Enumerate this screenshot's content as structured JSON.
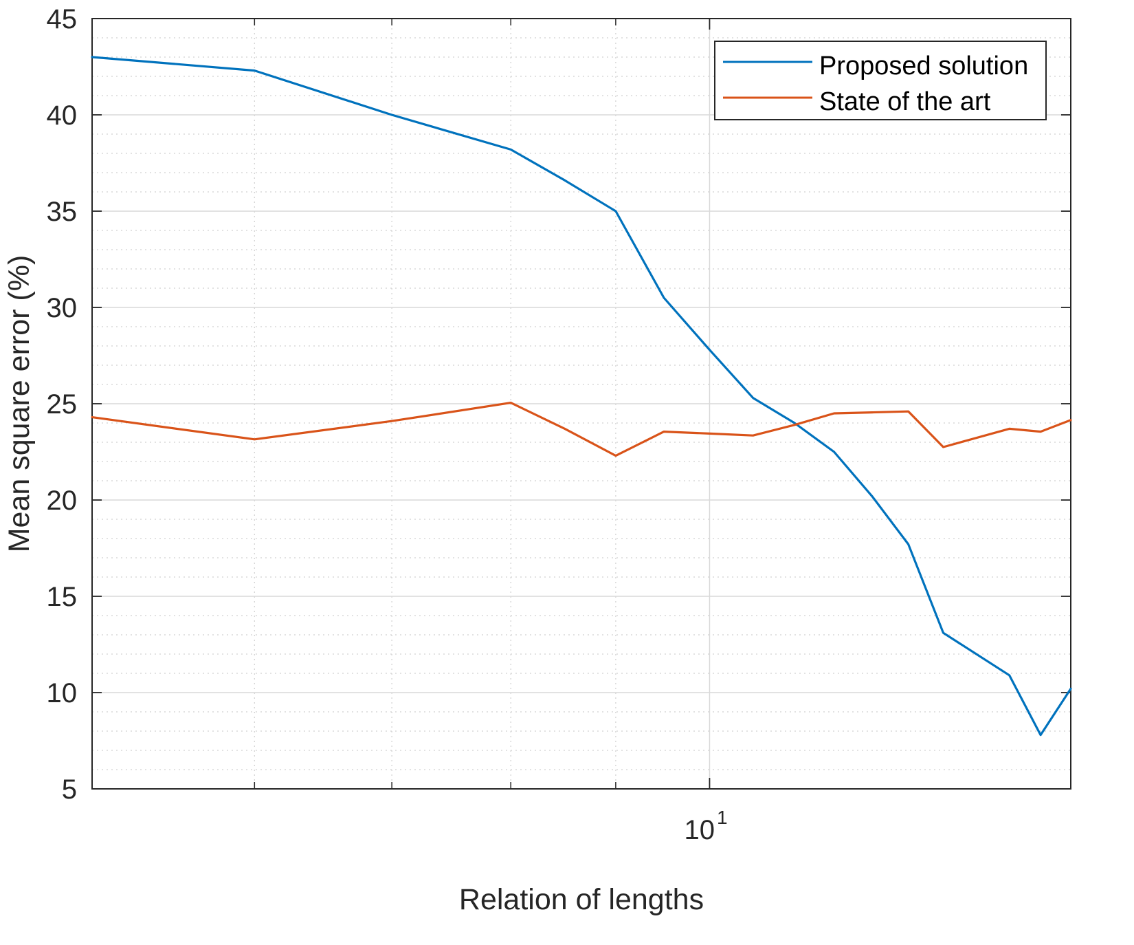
{
  "chart_data": {
    "type": "line",
    "title": "",
    "xlabel": "Relation of lengths",
    "ylabel": "Mean square error (%)",
    "xscale": "log",
    "xlim": [
      5,
      15
    ],
    "ylim": [
      5,
      45
    ],
    "yticks": [
      5,
      10,
      15,
      20,
      25,
      30,
      35,
      40,
      45
    ],
    "ytick_labels": [
      "5",
      "10",
      "15",
      "20",
      "25",
      "30",
      "35",
      "40",
      "45"
    ],
    "xticks_major": [
      10
    ],
    "xtick_major_base": "10",
    "xtick_major_exp": "1",
    "xticks_minor": [
      6,
      7,
      8,
      9
    ],
    "grid": true,
    "legend_position": "top-right",
    "x": [
      5,
      6,
      7,
      8,
      8.5,
      9,
      9.5,
      10,
      10.5,
      11,
      11.5,
      12,
      12.5,
      13,
      14,
      14.5,
      15
    ],
    "series": [
      {
        "name": "Proposed solution",
        "color": "#0072BD",
        "values": [
          43.0,
          42.3,
          40.0,
          38.2,
          36.6,
          35.0,
          30.5,
          27.8,
          25.3,
          24.0,
          22.5,
          20.2,
          17.7,
          13.1,
          10.9,
          7.8,
          10.2
        ]
      },
      {
        "name": "State of the art",
        "color": "#D95319",
        "values": [
          24.3,
          23.15,
          24.1,
          25.05,
          23.7,
          22.3,
          23.55,
          23.45,
          23.35,
          23.9,
          24.5,
          24.55,
          24.6,
          22.75,
          23.7,
          23.55,
          24.15
        ]
      }
    ]
  }
}
